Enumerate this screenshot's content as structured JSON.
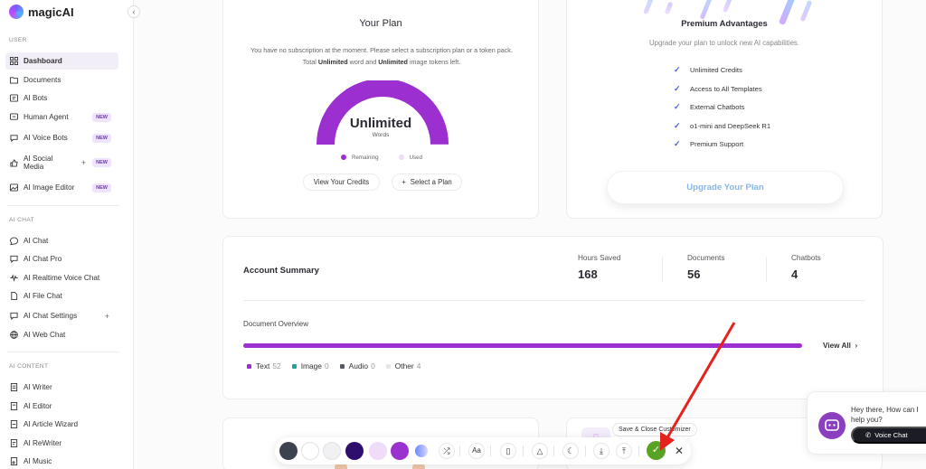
{
  "app": {
    "name": "magicAI"
  },
  "sidebar": {
    "sections": {
      "user": "USER",
      "ai_chat": "AI CHAT",
      "ai_content": "AI CONTENT"
    },
    "items": [
      {
        "label": "Dashboard",
        "icon": "grid-icon"
      },
      {
        "label": "Documents",
        "icon": "folder-icon"
      },
      {
        "label": "AI Bots",
        "icon": "bot-icon"
      },
      {
        "label": "Human Agent",
        "icon": "agent-icon",
        "badge": "NEW"
      },
      {
        "label": "AI Voice Bots",
        "icon": "voice-bot-icon",
        "badge": "NEW"
      },
      {
        "label": "AI Social Media",
        "icon": "thumbs-up-icon",
        "badge": "NEW",
        "plus": "+"
      },
      {
        "label": "AI Image Editor",
        "icon": "image-icon",
        "badge": "NEW"
      },
      {
        "label": "AI Chat",
        "icon": "chat-bubble-icon"
      },
      {
        "label": "AI Chat Pro",
        "icon": "chat-pro-icon"
      },
      {
        "label": "AI Realtime Voice Chat",
        "icon": "waveform-icon"
      },
      {
        "label": "AI File Chat",
        "icon": "file-icon"
      },
      {
        "label": "AI Chat Settings",
        "icon": "settings-icon",
        "plus": "+"
      },
      {
        "label": "AI Web Chat",
        "icon": "globe-icon"
      },
      {
        "label": "AI Writer",
        "icon": "document-icon"
      },
      {
        "label": "AI Editor",
        "icon": "editor-icon"
      },
      {
        "label": "AI Article Wizard",
        "icon": "wand-icon"
      },
      {
        "label": "AI ReWriter",
        "icon": "rewrite-icon"
      },
      {
        "label": "AI Music",
        "icon": "music-icon"
      }
    ]
  },
  "plan": {
    "title": "Your Plan",
    "description_1": "You have no subscription at the moment. Please select a subscription plan or a token pack. Total ",
    "description_bold_1": "Unlimited",
    "description_2": " word and ",
    "description_bold_2": "Unlimited",
    "description_3": " image tokens left.",
    "gauge_value": "Unlimited",
    "gauge_unit": "Words",
    "gauge_fill": 1.0,
    "legend_remaining": "Remaining",
    "legend_used": "Used",
    "view_credits": "View Your Credits",
    "select_plan": "Select a Plan",
    "colors": {
      "remaining": "#9b2fcf",
      "used": "#ecdcf7"
    }
  },
  "advantages": {
    "title": "Premium Advantages",
    "subtitle": "Upgrade your plan to unlock new AI capabilities.",
    "items": [
      "Unlimited Credits",
      "Access to All Templates",
      "External Chatbots",
      "o1-mini and DeepSeek R1",
      "Premium Support"
    ],
    "upgrade_button": "Upgrade Your Plan"
  },
  "summary": {
    "title": "Account Summary",
    "stats": [
      {
        "label": "Hours Saved",
        "value": "168"
      },
      {
        "label": "Documents",
        "value": "56"
      },
      {
        "label": "Chatbots",
        "value": "4"
      }
    ],
    "doc_overview": "Document Overview",
    "view_all": "View All",
    "progress_fraction": 1.0,
    "doc_types": [
      {
        "label": "Text",
        "count": "52",
        "color": "#9b2fcf"
      },
      {
        "label": "Image",
        "count": "0",
        "color": "#1fa39a"
      },
      {
        "label": "Audio",
        "count": "0",
        "color": "#555a66"
      },
      {
        "label": "Other",
        "count": "4",
        "color": "#e6e6ea"
      }
    ]
  },
  "customizer": {
    "tooltip": "Save & Close Customizer",
    "swatches": [
      "#3d4250",
      "#ffffff",
      "#f1f1f3",
      "#2e0f6e",
      "#eedcf9",
      "#9b32cf"
    ]
  },
  "chat_widget": {
    "greeting": "Hey there, How can I help you?",
    "voice_button": "Voice Chat"
  }
}
